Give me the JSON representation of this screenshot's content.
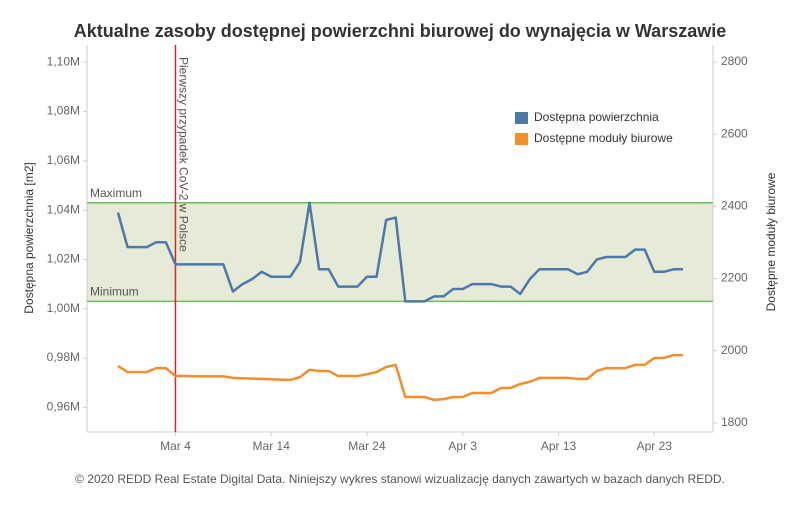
{
  "chart_data": {
    "type": "line",
    "title": "Aktualne zasoby dostępnej powierzchni biurowej do wynajęcia w Warszawie",
    "y_label": "Dostępna powierzchnia [m2]",
    "y2_label": "Dostępne moduły biurowe",
    "footer": "© 2020 REDD Real Estate Digital Data. Niniejszy wykres stanowi wizualizację danych zawartych w bazach danych REDD.",
    "categories": [
      null,
      null,
      null,
      null,
      null,
      null,
      "Mar 4",
      null,
      null,
      null,
      null,
      null,
      null,
      null,
      null,
      null,
      "Mar 14",
      null,
      null,
      null,
      null,
      null,
      null,
      null,
      null,
      null,
      "Mar 24",
      null,
      null,
      null,
      null,
      null,
      null,
      null,
      null,
      null,
      "Apr 3",
      null,
      null,
      null,
      null,
      null,
      null,
      null,
      null,
      null,
      "Apr 13",
      null,
      null,
      null,
      null,
      null,
      null,
      null,
      null,
      null,
      "Apr 23",
      null,
      null,
      null
    ],
    "series": [
      {
        "name": "Dostępna powierzchnia",
        "color": "#4e79a7",
        "values": [
          1.039,
          1.025,
          1.025,
          1.025,
          1.027,
          1.027,
          1.018,
          1.018,
          1.018,
          1.018,
          1.018,
          1.018,
          1.007,
          1.01,
          1.012,
          1.015,
          1.013,
          1.013,
          1.013,
          1.019,
          1.043,
          1.016,
          1.016,
          1.009,
          1.009,
          1.009,
          1.013,
          1.013,
          1.036,
          1.037,
          1.003,
          1.003,
          1.003,
          1.005,
          1.005,
          1.008,
          1.008,
          1.01,
          1.01,
          1.01,
          1.009,
          1.009,
          1.006,
          1.012,
          1.016,
          1.016,
          1.016,
          1.016,
          1.014,
          1.015,
          1.02,
          1.021,
          1.021,
          1.021,
          1.024,
          1.024,
          1.015,
          1.015,
          1.016,
          1.016
        ]
      },
      {
        "name": "Dostępne moduły biurowe",
        "color": "#f28e2b",
        "axis": "y2",
        "values": [
          1958,
          1941,
          1941,
          1941,
          1952,
          1952,
          1930,
          1930,
          1929,
          1929,
          1929,
          1929,
          1925,
          1924,
          1923,
          1922,
          1921,
          1920,
          1919,
          1927,
          1947,
          1944,
          1944,
          1930,
          1930,
          1930,
          1935,
          1941,
          1955,
          1961,
          1872,
          1872,
          1872,
          1864,
          1866,
          1872,
          1872,
          1883,
          1883,
          1883,
          1897,
          1897,
          1908,
          1914,
          1925,
          1925,
          1925,
          1925,
          1922,
          1922,
          1944,
          1952,
          1952,
          1952,
          1961,
          1961,
          1980,
          1980,
          1988,
          1988
        ]
      }
    ],
    "ylim": [
      0.95,
      1.107
    ],
    "yticks": [
      {
        "value": 0.96,
        "label": "0,96M"
      },
      {
        "value": 0.98,
        "label": "0,98M"
      },
      {
        "value": 1.0,
        "label": "1,00M"
      },
      {
        "value": 1.02,
        "label": "1,02M"
      },
      {
        "value": 1.04,
        "label": "1,04M"
      },
      {
        "value": 1.06,
        "label": "1,06M"
      },
      {
        "value": 1.08,
        "label": "1,08M"
      },
      {
        "value": 1.1,
        "label": "1,10M"
      }
    ],
    "y2lim": [
      1775,
      2847
    ],
    "y2ticks": [
      1800,
      2000,
      2200,
      2400,
      2600,
      2800
    ],
    "band": {
      "color": "#e6ebd8",
      "line_color": "#6abf59",
      "bounds": [
        {
          "label": "Maximum",
          "value": 1.043
        },
        {
          "label": "Minimum",
          "value": 1.003
        }
      ]
    },
    "vline": {
      "at": "Mar 4",
      "label": "Pierwszy przypadek CoV-2 w Polsce",
      "color": "#d62728"
    },
    "legend": "top-right",
    "grid": false
  }
}
